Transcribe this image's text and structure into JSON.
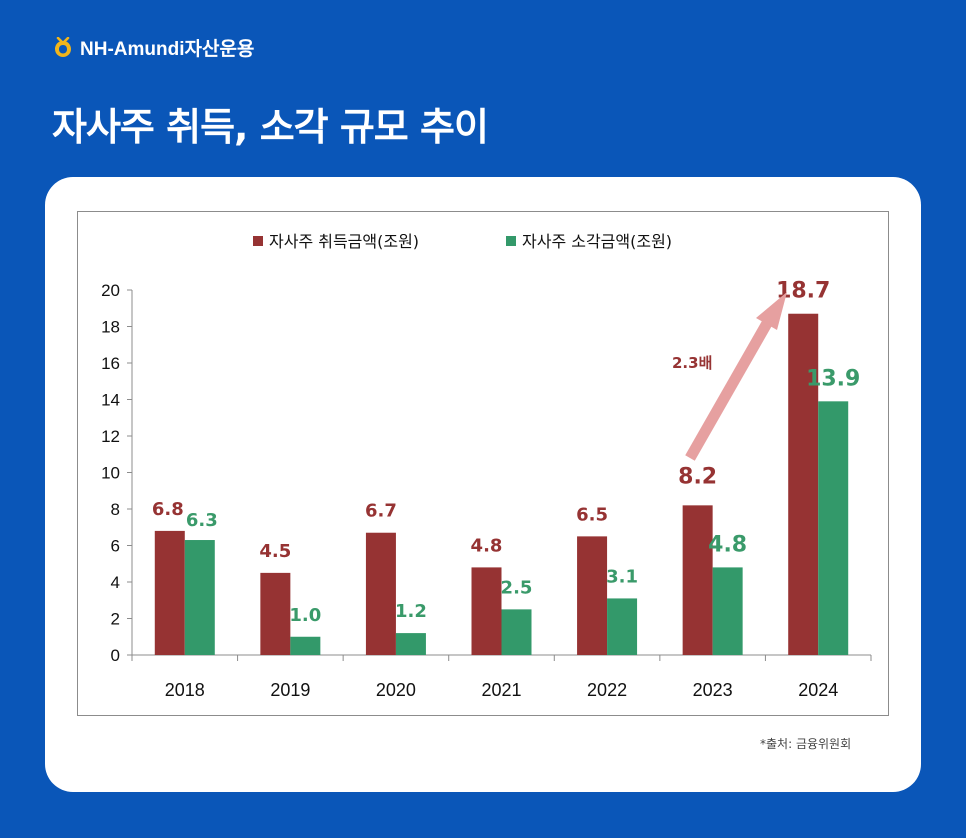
{
  "brand": {
    "name": "NH-Amundi자산운용",
    "logo_icon": "nh-logo-icon",
    "logo_color": "#f2b51a"
  },
  "page_title": "자사주 취득, 소각 규모 추이",
  "source_note": "*출처: 금융위원회",
  "colors": {
    "background": "#0a56b8",
    "acquisition": "#963333",
    "retirement": "#33996a",
    "arrow": "#e6a0a0",
    "acq_label": "#963333",
    "ret_label": "#3a9a6a"
  },
  "annotation": {
    "text": "2.3배",
    "from": "2023",
    "to": "2024"
  },
  "chart_data": {
    "type": "bar",
    "categories": [
      "2018",
      "2019",
      "2020",
      "2021",
      "2022",
      "2023",
      "2024"
    ],
    "series": [
      {
        "name": "자사주 취득금액(조원)",
        "values": [
          6.8,
          4.5,
          6.7,
          4.8,
          6.5,
          8.2,
          18.7
        ]
      },
      {
        "name": "자사주 소각금액(조원)",
        "values": [
          6.3,
          1.0,
          1.2,
          2.5,
          3.1,
          4.8,
          13.9
        ]
      }
    ],
    "value_labels": [
      [
        "6.8",
        "4.5",
        "6.7",
        "4.8",
        "6.5",
        "8.2",
        "18.7"
      ],
      [
        "6.3",
        "1.0",
        "1.2",
        "2.5",
        "3.1",
        "4.8",
        "13.9"
      ]
    ],
    "y_ticks": [
      "0",
      "2",
      "4",
      "6",
      "8",
      "10",
      "12",
      "14",
      "16",
      "18",
      "20"
    ],
    "ylim": [
      0,
      20
    ],
    "grid": false,
    "legend_position": "top-center",
    "title": "",
    "xlabel": "",
    "ylabel": ""
  }
}
